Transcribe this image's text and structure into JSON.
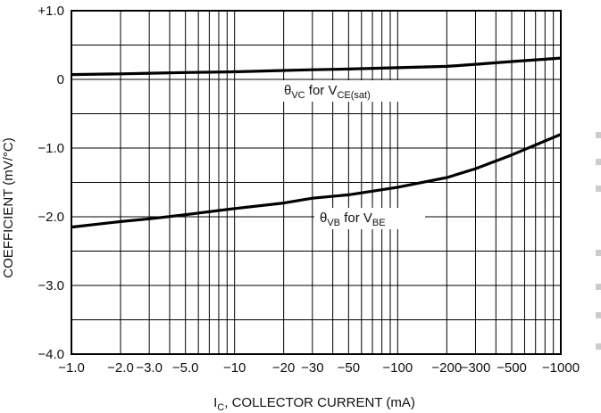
{
  "chart_data": {
    "type": "line",
    "title": "",
    "xlabel": "I",
    "xlabel_sub": "C",
    "xlabel_rest": ", COLLECTOR CURRENT (mA)",
    "ylabel": "COEFFICIENT (mV/°C)",
    "x_scale": "log",
    "x_tick_values": [
      1,
      2,
      3,
      5,
      10,
      20,
      30,
      50,
      100,
      200,
      300,
      500,
      1000
    ],
    "x_tick_labels": [
      "−1.0",
      "−2.0",
      "−3.0",
      "−5.0",
      "−10",
      "−20",
      "−30",
      "−50",
      "−100",
      "−200",
      "−300",
      "−500",
      "−1000"
    ],
    "xlim": [
      1,
      1000
    ],
    "y_tick_values": [
      1,
      0,
      -1,
      -2,
      -3,
      -4
    ],
    "y_tick_labels": [
      "+1.0",
      "0",
      "−1.0",
      "−2.0",
      "−3.0",
      "−4.0"
    ],
    "ylim": [
      -4,
      1
    ],
    "grid": true,
    "series": [
      {
        "name": "θVC for VCE(sat)",
        "x": [
          1,
          2,
          3,
          5,
          10,
          20,
          30,
          50,
          100,
          200,
          300,
          500,
          1000
        ],
        "y": [
          0.07,
          0.08,
          0.09,
          0.1,
          0.11,
          0.13,
          0.14,
          0.15,
          0.17,
          0.19,
          0.22,
          0.26,
          0.31
        ]
      },
      {
        "name": "θVB for VBE",
        "x": [
          1,
          2,
          3,
          5,
          10,
          20,
          30,
          50,
          100,
          200,
          300,
          500,
          1000
        ],
        "y": [
          -2.15,
          -2.07,
          -2.03,
          -1.97,
          -1.88,
          -1.8,
          -1.73,
          -1.68,
          -1.57,
          -1.43,
          -1.3,
          -1.1,
          -0.8
        ]
      }
    ],
    "annotations": [
      {
        "symbol": "θ",
        "sub1": "VC",
        "mid": " for V",
        "sub2": "CE(sat)"
      },
      {
        "symbol": "θ",
        "sub1": "VB",
        "mid": " for V",
        "sub2": "BE"
      }
    ]
  }
}
